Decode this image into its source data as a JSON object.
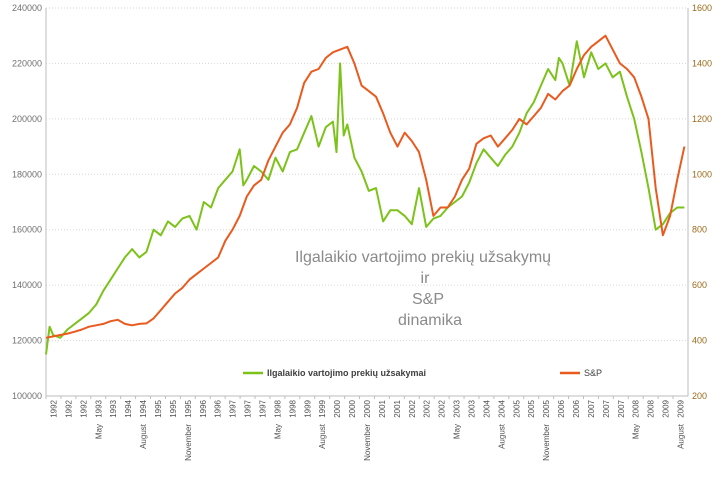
{
  "chart_data": {
    "type": "line",
    "title_lines": [
      "Ilgalaikio vartojimo prekių užsakymų",
      "ir",
      "S&P",
      "dinamika"
    ],
    "left_axis": {
      "min": 100000,
      "max": 240000,
      "ticks": [
        "100000",
        "120000",
        "140000",
        "160000",
        "180000",
        "200000",
        "220000",
        "240000"
      ],
      "color": "#7a7a7a"
    },
    "right_axis": {
      "min": 200,
      "max": 1600,
      "ticks": [
        "200",
        "400",
        "600",
        "800",
        "1000",
        "1200",
        "1400",
        "1600"
      ],
      "color": "#c87a1a"
    },
    "x_axis": {
      "min": 1992.0,
      "max": 2009.9,
      "year_labels": [
        "1992",
        "1992",
        "1992",
        "1993",
        "1993",
        "1994",
        "1994",
        "1995",
        "1995",
        "1995",
        "1996",
        "1996",
        "1997",
        "1997",
        "1997",
        "1998",
        "1998",
        "1999",
        "1999",
        "2000",
        "2000",
        "2000",
        "2001",
        "2001",
        "2002",
        "2002",
        "2002",
        "2003",
        "2003",
        "2004",
        "2004",
        "2005",
        "2005",
        "2005",
        "2006",
        "2006",
        "2007",
        "2007",
        "2007",
        "2008",
        "2008",
        "2009",
        "2009"
      ],
      "sub_labels": [
        {
          "pos": 3,
          "text": "May"
        },
        {
          "pos": 6,
          "text": "August"
        },
        {
          "pos": 9,
          "text": "November"
        },
        {
          "pos": 15,
          "text": "May"
        },
        {
          "pos": 18,
          "text": "August"
        },
        {
          "pos": 21,
          "text": "November"
        },
        {
          "pos": 27,
          "text": "May"
        },
        {
          "pos": 30,
          "text": "August"
        },
        {
          "pos": 33,
          "text": "November"
        },
        {
          "pos": 39,
          "text": "May"
        },
        {
          "pos": 42,
          "text": "August"
        }
      ]
    },
    "grid": true,
    "legend": {
      "placement": "bottom-center",
      "entries": [
        {
          "name": "Ilgalaikio vartojimo prekių užsakymai",
          "color": "#7cc21a"
        },
        {
          "name": "S&P",
          "color": "#ea5a1e"
        }
      ]
    },
    "series": [
      {
        "name": "Ilgalaikio vartojimo prekių užsakymai",
        "axis": "left",
        "color": "#7cc21a",
        "x": [
          1992.0,
          1992.1,
          1992.2,
          1992.4,
          1992.6,
          1992.8,
          1993.0,
          1993.2,
          1993.4,
          1993.6,
          1993.8,
          1994.0,
          1994.2,
          1994.4,
          1994.6,
          1994.8,
          1995.0,
          1995.2,
          1995.4,
          1995.6,
          1995.8,
          1996.0,
          1996.2,
          1996.4,
          1996.6,
          1996.8,
          1997.0,
          1997.2,
          1997.4,
          1997.5,
          1997.6,
          1997.8,
          1998.0,
          1998.2,
          1998.4,
          1998.6,
          1998.8,
          1999.0,
          1999.2,
          1999.4,
          1999.6,
          1999.8,
          2000.0,
          2000.1,
          2000.2,
          2000.3,
          2000.4,
          2000.6,
          2000.8,
          2001.0,
          2001.2,
          2001.4,
          2001.6,
          2001.8,
          2002.0,
          2002.2,
          2002.4,
          2002.6,
          2002.8,
          2003.0,
          2003.2,
          2003.4,
          2003.6,
          2003.8,
          2004.0,
          2004.2,
          2004.4,
          2004.6,
          2004.8,
          2005.0,
          2005.2,
          2005.4,
          2005.6,
          2005.8,
          2006.0,
          2006.2,
          2006.3,
          2006.4,
          2006.6,
          2006.8,
          2007.0,
          2007.2,
          2007.4,
          2007.6,
          2007.8,
          2008.0,
          2008.2,
          2008.4,
          2008.6,
          2008.8,
          2009.0,
          2009.2,
          2009.4,
          2009.6,
          2009.8
        ],
        "values": [
          115000,
          125000,
          122000,
          121000,
          124000,
          126000,
          128000,
          130000,
          133000,
          138000,
          142000,
          146000,
          150000,
          153000,
          150000,
          152000,
          160000,
          158000,
          163000,
          161000,
          164000,
          165000,
          160000,
          170000,
          168000,
          175000,
          178000,
          181000,
          189000,
          176000,
          178000,
          183000,
          181000,
          178000,
          186000,
          181000,
          188000,
          189000,
          195000,
          201000,
          190000,
          197000,
          199000,
          188000,
          220000,
          194000,
          198000,
          186000,
          181000,
          174000,
          175000,
          163000,
          167000,
          167000,
          165000,
          162000,
          175000,
          161000,
          164000,
          165000,
          168000,
          170000,
          172000,
          177000,
          184000,
          189000,
          186000,
          183000,
          187000,
          190000,
          195000,
          202000,
          206000,
          212000,
          218000,
          214000,
          222000,
          220000,
          212000,
          228000,
          215000,
          224000,
          218000,
          220000,
          215000,
          217000,
          208000,
          200000,
          188000,
          175000,
          160000,
          162000,
          166000,
          168000,
          168000
        ]
      },
      {
        "name": "S&P",
        "axis": "right",
        "color": "#ea5a1e",
        "x": [
          1992.0,
          1992.2,
          1992.4,
          1992.6,
          1992.8,
          1993.0,
          1993.2,
          1993.4,
          1993.6,
          1993.8,
          1994.0,
          1994.2,
          1994.4,
          1994.6,
          1994.8,
          1995.0,
          1995.2,
          1995.4,
          1995.6,
          1995.8,
          1996.0,
          1996.2,
          1996.4,
          1996.6,
          1996.8,
          1997.0,
          1997.2,
          1997.4,
          1997.6,
          1997.8,
          1998.0,
          1998.2,
          1998.4,
          1998.6,
          1998.8,
          1999.0,
          1999.2,
          1999.4,
          1999.6,
          1999.8,
          2000.0,
          2000.2,
          2000.4,
          2000.6,
          2000.8,
          2001.0,
          2001.2,
          2001.4,
          2001.6,
          2001.8,
          2002.0,
          2002.2,
          2002.4,
          2002.6,
          2002.8,
          2003.0,
          2003.2,
          2003.4,
          2003.6,
          2003.8,
          2004.0,
          2004.2,
          2004.4,
          2004.6,
          2004.8,
          2005.0,
          2005.2,
          2005.4,
          2005.6,
          2005.8,
          2006.0,
          2006.2,
          2006.4,
          2006.6,
          2006.8,
          2007.0,
          2007.2,
          2007.4,
          2007.6,
          2007.8,
          2008.0,
          2008.2,
          2008.4,
          2008.6,
          2008.8,
          2009.0,
          2009.2,
          2009.4,
          2009.6,
          2009.8
        ],
        "values": [
          410,
          415,
          420,
          425,
          432,
          440,
          450,
          455,
          460,
          470,
          475,
          460,
          455,
          460,
          462,
          480,
          510,
          540,
          570,
          590,
          620,
          640,
          660,
          680,
          700,
          760,
          800,
          850,
          920,
          960,
          980,
          1050,
          1100,
          1150,
          1180,
          1240,
          1330,
          1370,
          1380,
          1420,
          1440,
          1450,
          1460,
          1400,
          1320,
          1300,
          1280,
          1220,
          1150,
          1100,
          1150,
          1120,
          1080,
          980,
          850,
          880,
          880,
          920,
          980,
          1020,
          1110,
          1130,
          1140,
          1100,
          1130,
          1160,
          1200,
          1180,
          1210,
          1240,
          1290,
          1270,
          1300,
          1320,
          1380,
          1430,
          1460,
          1480,
          1500,
          1450,
          1400,
          1380,
          1350,
          1280,
          1200,
          950,
          780,
          850,
          980,
          1100
        ]
      }
    ]
  }
}
